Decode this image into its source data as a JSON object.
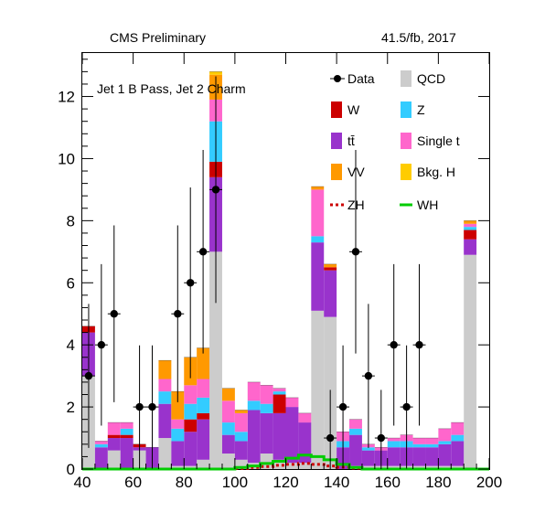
{
  "header": {
    "left": "CMS Preliminary",
    "right": "41.5/fb, 2017"
  },
  "annotation": "Jet 1 B Pass, Jet 2 Charm",
  "legend": {
    "data": "Data",
    "qcd": "QCD",
    "w": "W",
    "z": "Z",
    "tt": "tt̄",
    "single_t": "Single t",
    "vv": "VV",
    "bkg_h": "Bkg. H",
    "zh": "ZH",
    "wh": "WH"
  },
  "colors": {
    "qcd": "#cccccc",
    "w": "#cc0000",
    "z": "#33ccff",
    "tt": "#9933cc",
    "single_t": "#ff66cc",
    "vv": "#ff9900",
    "bkg_h": "#ffcc00",
    "zh": "#cc0000",
    "wh": "#00cc00",
    "data": "#000000"
  },
  "chart_data": {
    "type": "bar",
    "stacked": true,
    "xlim": [
      40,
      200
    ],
    "ylim": [
      0,
      13.4
    ],
    "xticks": [
      40,
      60,
      80,
      100,
      120,
      140,
      160,
      180,
      200
    ],
    "yticks": [
      0,
      2,
      4,
      6,
      8,
      10,
      12
    ],
    "bin_edges": [
      40,
      45,
      50,
      55,
      60,
      65,
      70,
      75,
      80,
      85,
      90,
      95,
      100,
      105,
      110,
      115,
      120,
      125,
      130,
      135,
      140,
      145,
      150,
      155,
      160,
      165,
      170,
      175,
      180,
      185,
      190,
      195,
      200
    ],
    "series": [
      {
        "key": "qcd",
        "name": "QCD",
        "values": [
          3.0,
          0.0,
          0.6,
          0.0,
          0.6,
          0.0,
          1.0,
          0.1,
          0.1,
          0.3,
          7.0,
          0.5,
          0.3,
          0.2,
          0.5,
          0.3,
          0.2,
          0.2,
          5.1,
          4.9,
          0.0,
          0.1,
          0.1,
          0.1,
          0.1,
          0.1,
          0.1,
          0.1,
          0.1,
          0.1,
          6.9,
          0.0
        ]
      },
      {
        "key": "tt",
        "name": "tt̄",
        "values": [
          1.4,
          0.7,
          0.4,
          1.0,
          0.1,
          0.7,
          1.1,
          0.8,
          1.1,
          1.3,
          2.4,
          0.6,
          0.6,
          1.7,
          1.3,
          1.5,
          1.8,
          1.3,
          2.2,
          1.5,
          0.7,
          1.0,
          0.5,
          0.5,
          0.6,
          0.6,
          0.6,
          0.6,
          0.7,
          0.8,
          0.5,
          0.0
        ]
      },
      {
        "key": "w",
        "name": "W",
        "values": [
          0.2,
          0.0,
          0.1,
          0.1,
          0.1,
          0.0,
          0.0,
          0.0,
          0.4,
          0.2,
          0.5,
          0.0,
          0.0,
          0.0,
          0.0,
          0.6,
          0.0,
          0.0,
          0.0,
          0.1,
          0.0,
          0.0,
          0.0,
          0.0,
          0.0,
          0.0,
          0.0,
          0.0,
          0.0,
          0.0,
          0.3,
          0.0
        ]
      },
      {
        "key": "z",
        "name": "Z",
        "values": [
          0.0,
          0.1,
          0.0,
          0.2,
          0.0,
          0.0,
          0.4,
          0.4,
          0.5,
          0.5,
          1.3,
          0.4,
          0.3,
          0.3,
          0.3,
          0.1,
          0.0,
          0.0,
          0.2,
          0.0,
          0.2,
          0.2,
          0.1,
          0.0,
          0.2,
          0.2,
          0.1,
          0.1,
          0.1,
          0.2,
          0.1,
          0.0
        ]
      },
      {
        "key": "single_t",
        "name": "Single t",
        "values": [
          0.0,
          0.1,
          0.4,
          0.2,
          0.0,
          0.0,
          0.4,
          0.3,
          0.6,
          0.6,
          0.7,
          0.7,
          0.6,
          0.6,
          0.6,
          0.1,
          0.3,
          0.3,
          1.5,
          0.0,
          0.3,
          0.3,
          0.1,
          0.1,
          0.1,
          0.2,
          0.2,
          0.2,
          0.4,
          0.4,
          0.1,
          0.0
        ]
      },
      {
        "key": "vv",
        "name": "VV",
        "values": [
          0.0,
          0.0,
          0.0,
          0.0,
          0.0,
          0.0,
          0.6,
          0.9,
          0.9,
          1.0,
          0.8,
          0.4,
          0.1,
          0.0,
          0.0,
          0.0,
          0.0,
          0.0,
          0.1,
          0.1,
          0.0,
          0.0,
          0.0,
          0.0,
          0.0,
          0.0,
          0.0,
          0.0,
          0.0,
          0.0,
          0.1,
          0.0
        ]
      },
      {
        "key": "bkg_h",
        "name": "Bkg. H",
        "values": [
          0.0,
          0.0,
          0.0,
          0.0,
          0.0,
          0.0,
          0.0,
          0.0,
          0.0,
          0.0,
          0.1,
          0.0,
          0.0,
          0.0,
          0.0,
          0.0,
          0.0,
          0.0,
          0.0,
          0.0,
          0.0,
          0.0,
          0.0,
          0.0,
          0.0,
          0.0,
          0.0,
          0.0,
          0.0,
          0.0,
          0.0,
          0.0
        ]
      }
    ],
    "signals": [
      {
        "key": "zh",
        "name": "ZH",
        "values": [
          0,
          0,
          0,
          0,
          0,
          0,
          0,
          0,
          0,
          0,
          0,
          0,
          0.02,
          0.05,
          0.08,
          0.12,
          0.15,
          0.18,
          0.15,
          0.1,
          0.06,
          0.03,
          0,
          0,
          0,
          0,
          0,
          0,
          0,
          0,
          0,
          0
        ]
      },
      {
        "key": "wh",
        "name": "WH",
        "values": [
          0,
          0,
          0,
          0,
          0,
          0,
          0,
          0,
          0,
          0,
          0,
          0,
          0.05,
          0.1,
          0.18,
          0.25,
          0.35,
          0.45,
          0.4,
          0.3,
          0.15,
          0.05,
          0,
          0,
          0,
          0,
          0,
          0,
          0,
          0,
          0,
          0
        ]
      }
    ],
    "data_points": {
      "x": [
        42.5,
        47.5,
        52.5,
        57.5,
        62.5,
        67.5,
        72.5,
        77.5,
        82.5,
        87.5,
        92.5,
        97.5,
        102.5,
        107.5,
        112.5,
        117.5,
        122.5,
        127.5,
        132.5,
        137.5,
        142.5,
        147.5,
        152.5,
        157.5,
        162.5,
        167.5,
        172.5,
        177.5,
        182.5,
        187.5,
        192.5,
        197.5
      ],
      "y": [
        3,
        4,
        5,
        0,
        2,
        2,
        0,
        5,
        6,
        7,
        9,
        0,
        0,
        0,
        0,
        0,
        0,
        0,
        0,
        1,
        2,
        7,
        3,
        1,
        4,
        2,
        4,
        0,
        0,
        0,
        0,
        0
      ],
      "mask": [
        1,
        1,
        1,
        0,
        1,
        1,
        0,
        1,
        1,
        1,
        1,
        0,
        0,
        0,
        0,
        0,
        0,
        0,
        0,
        1,
        1,
        1,
        1,
        1,
        1,
        1,
        1,
        0,
        0,
        0,
        0,
        0
      ]
    }
  }
}
